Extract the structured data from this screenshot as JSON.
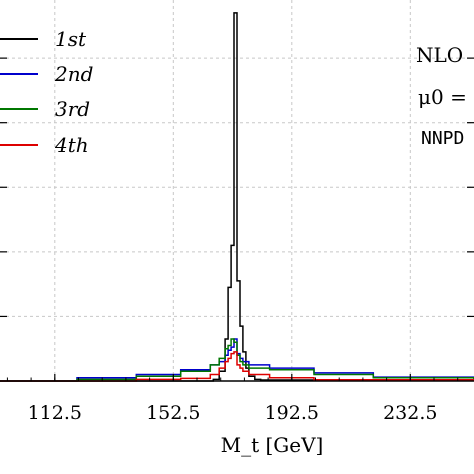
{
  "chart_data": {
    "type": "line",
    "xlabel": "M_t [GeV]",
    "xlim": [
      94,
      254
    ],
    "ylim": [
      0,
      1.18
    ],
    "x_ticks": [
      "112.5",
      "152.5",
      "192.5",
      "232.5"
    ],
    "x_tick_values": [
      112.5,
      152.5,
      192.5,
      232.5
    ],
    "y_gridlines": [
      0.2,
      0.4,
      0.6,
      0.8,
      1.0
    ],
    "grid": true,
    "legend_position": "top-left",
    "annotations": [
      "NLO",
      "μ0 =",
      "NNPD"
    ],
    "series": [
      {
        "name": "1st",
        "color": "#000000",
        "x": [
          94,
          166,
          168,
          170,
          171,
          172,
          173,
          174,
          175,
          176,
          177,
          178,
          180,
          182,
          254
        ],
        "y": [
          0.0,
          0.005,
          0.03,
          0.13,
          0.29,
          0.42,
          1.14,
          0.31,
          0.17,
          0.09,
          0.04,
          0.015,
          0.005,
          0.003,
          0.0
        ]
      },
      {
        "name": "2nd",
        "color": "#0000cc",
        "x": [
          94,
          120,
          140,
          155,
          165,
          168,
          170,
          171,
          172,
          173,
          174,
          175,
          176,
          178,
          185,
          200,
          220,
          254
        ],
        "y": [
          0.0,
          0.01,
          0.02,
          0.035,
          0.05,
          0.06,
          0.08,
          0.095,
          0.105,
          0.13,
          0.085,
          0.07,
          0.06,
          0.05,
          0.04,
          0.025,
          0.012,
          0.0
        ]
      },
      {
        "name": "3rd",
        "color": "#007700",
        "x": [
          94,
          120,
          140,
          155,
          165,
          168,
          170,
          171,
          172,
          173,
          174,
          175,
          176,
          178,
          185,
          200,
          220,
          254
        ],
        "y": [
          0.0,
          0.005,
          0.015,
          0.03,
          0.05,
          0.07,
          0.1,
          0.11,
          0.13,
          0.12,
          0.08,
          0.06,
          0.05,
          0.04,
          0.035,
          0.02,
          0.01,
          0.0
        ]
      },
      {
        "name": "4th",
        "color": "#dd0000",
        "x": [
          94,
          140,
          155,
          165,
          168,
          170,
          171,
          172,
          173,
          174,
          175,
          176,
          178,
          185,
          200,
          254
        ],
        "y": [
          0.0,
          0.005,
          0.008,
          0.02,
          0.04,
          0.06,
          0.07,
          0.085,
          0.09,
          0.05,
          0.04,
          0.03,
          0.02,
          0.01,
          0.004,
          0.0
        ]
      }
    ]
  }
}
